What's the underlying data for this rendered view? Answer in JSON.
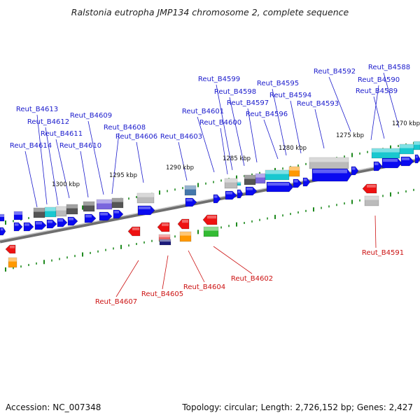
{
  "title": "Ralstonia eutropha JMP134 chromosome 2, complete sequence",
  "footer": {
    "accession": "Accession: NC_007348",
    "summary": "Topology: circular; Length: 2,726,152 bp; Genes: 2,427"
  },
  "colors": {
    "forward_label": "#1a1acc",
    "reverse_label": "#cc1111",
    "backbone": "#8a8a8a",
    "tick": "#1f8a1f",
    "cds_forward": "#0a0af0",
    "cds_reverse": "#ee1111",
    "cyan": "#19c8d0",
    "gray": "#bbbbbb",
    "darkgray": "#555555",
    "purple": "#7a66dd",
    "orange": "#ff9900",
    "green": "#33bb33",
    "steelblue": "#4477aa"
  },
  "scale_labels": [
    "1300 kbp",
    "1295 kbp",
    "1290 kbp",
    "1285 kbp",
    "1280 kbp",
    "1275 kbp",
    "1270 kbp"
  ],
  "forward_genes": [
    "Reut_B4588",
    "Reut_B4589",
    "Reut_B4590",
    "Reut_B4592",
    "Reut_B4593",
    "Reut_B4594",
    "Reut_B4595",
    "Reut_B4596",
    "Reut_B4597",
    "Reut_B4598",
    "Reut_B4599",
    "Reut_B4600",
    "Reut_B4601",
    "Reut_B4603",
    "Reut_B4606",
    "Reut_B4608",
    "Reut_B4609",
    "Reut_B4610",
    "Reut_B4611",
    "Reut_B4612",
    "Reut_B4613",
    "Reut_B4614"
  ],
  "reverse_genes": [
    "Reut_B4591",
    "Reut_B4602",
    "Reut_B4604",
    "Reut_B4605",
    "Reut_B4607"
  ]
}
